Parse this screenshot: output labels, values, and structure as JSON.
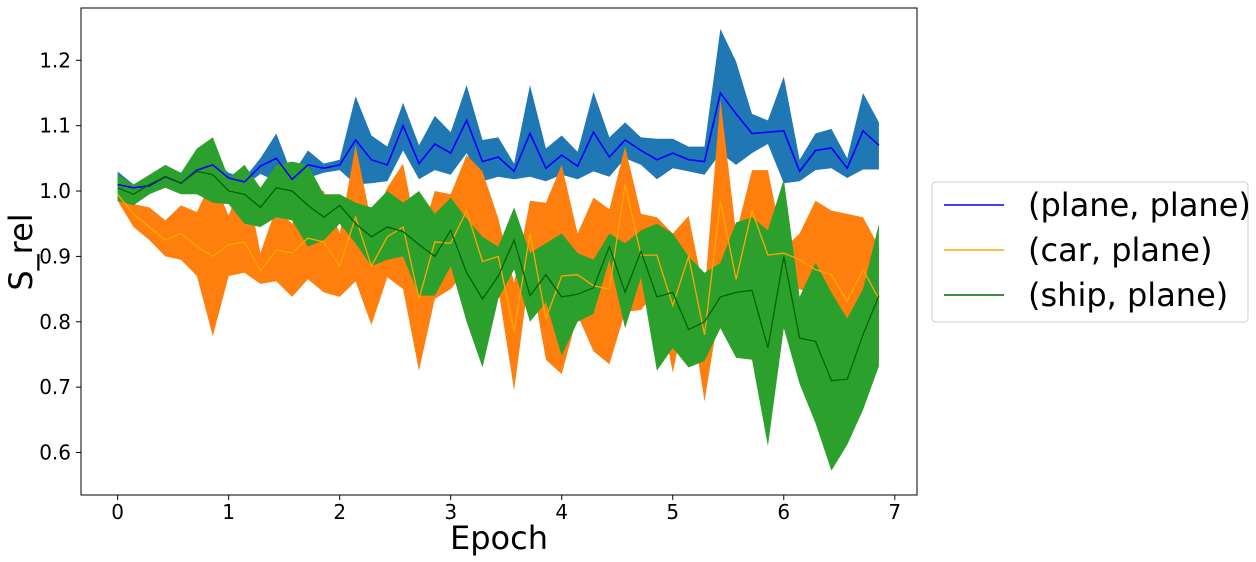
{
  "chart_data": {
    "type": "line",
    "xlabel": "Epoch",
    "ylabel": "S_rel",
    "xlim": [
      -0.33,
      7.2
    ],
    "ylim": [
      0.535,
      1.28
    ],
    "xticks": [
      0,
      1,
      2,
      3,
      4,
      5,
      6,
      7
    ],
    "yticks": [
      0.6,
      0.7,
      0.8,
      0.9,
      1.0,
      1.1,
      1.2
    ],
    "x": [
      0,
      0.143,
      0.286,
      0.429,
      0.571,
      0.714,
      0.857,
      1.0,
      1.143,
      1.286,
      1.429,
      1.571,
      1.714,
      1.857,
      2.0,
      2.143,
      2.286,
      2.429,
      2.571,
      2.714,
      2.857,
      3.0,
      3.143,
      3.286,
      3.429,
      3.571,
      3.714,
      3.857,
      4.0,
      4.143,
      4.286,
      4.429,
      4.571,
      4.714,
      4.857,
      5.0,
      5.143,
      5.286,
      5.429,
      5.571,
      5.714,
      5.857,
      6.0,
      6.143,
      6.286,
      6.429,
      6.571,
      6.714,
      6.857
    ],
    "series": [
      {
        "name": "(plane, plane)",
        "line_color": "#0000ff",
        "fill_color": "#1f77b4",
        "mean": [
          1.01,
          1.005,
          1.008,
          1.022,
          1.012,
          1.032,
          1.04,
          1.02,
          1.014,
          1.038,
          1.05,
          1.018,
          1.04,
          1.035,
          1.04,
          1.078,
          1.048,
          1.04,
          1.1,
          1.042,
          1.072,
          1.058,
          1.108,
          1.045,
          1.052,
          1.03,
          1.088,
          1.035,
          1.055,
          1.038,
          1.09,
          1.052,
          1.078,
          1.062,
          1.048,
          1.058,
          1.048,
          1.045,
          1.15,
          1.118,
          1.088,
          1.09,
          1.092,
          1.03,
          1.062,
          1.066,
          1.035,
          1.092,
          1.07
        ],
        "upper": [
          1.03,
          1.01,
          1.015,
          1.03,
          1.018,
          1.04,
          1.048,
          1.028,
          1.02,
          1.05,
          1.088,
          1.025,
          1.062,
          1.042,
          1.048,
          1.145,
          1.085,
          1.068,
          1.135,
          1.07,
          1.115,
          1.09,
          1.162,
          1.078,
          1.082,
          1.042,
          1.162,
          1.065,
          1.085,
          1.06,
          1.152,
          1.082,
          1.105,
          1.082,
          1.08,
          1.08,
          1.068,
          1.068,
          1.248,
          1.198,
          1.118,
          1.108,
          1.175,
          1.048,
          1.088,
          1.095,
          1.05,
          1.15,
          1.105
        ],
        "lower": [
          1.0,
          1.0,
          1.0,
          1.015,
          1.006,
          1.025,
          1.032,
          1.012,
          1.008,
          1.026,
          1.015,
          1.01,
          1.02,
          1.028,
          1.032,
          1.01,
          1.012,
          1.015,
          1.062,
          1.018,
          1.032,
          1.025,
          1.058,
          1.015,
          1.022,
          1.018,
          1.022,
          1.015,
          1.025,
          1.018,
          1.03,
          1.022,
          1.05,
          1.04,
          1.018,
          1.035,
          1.03,
          1.025,
          1.058,
          1.04,
          1.058,
          1.072,
          1.012,
          1.015,
          1.032,
          1.035,
          1.02,
          1.033,
          1.033
        ]
      },
      {
        "name": "(car, plane)",
        "line_color": "#ffa500",
        "fill_color": "#ff7f0e",
        "mean": [
          0.995,
          0.965,
          0.945,
          0.925,
          0.935,
          0.915,
          0.9,
          0.918,
          0.922,
          0.878,
          0.91,
          0.905,
          0.928,
          0.922,
          0.885,
          0.96,
          0.885,
          0.93,
          0.945,
          0.835,
          0.922,
          0.92,
          0.97,
          0.892,
          0.9,
          0.785,
          0.935,
          0.805,
          0.87,
          0.872,
          0.855,
          0.85,
          1.01,
          0.902,
          0.902,
          0.825,
          0.9,
          0.78,
          0.985,
          0.865,
          0.97,
          0.902,
          0.905,
          0.895,
          0.88,
          0.872,
          0.832,
          0.88,
          0.835
        ],
        "upper": [
          1.0,
          0.98,
          0.975,
          0.955,
          0.978,
          0.968,
          1.02,
          0.962,
          1.032,
          0.905,
          0.975,
          0.95,
          1.0,
          1.0,
          0.935,
          1.07,
          0.952,
          1.005,
          1.042,
          0.92,
          1.0,
          0.995,
          1.055,
          1.03,
          0.958,
          0.86,
          0.985,
          0.982,
          1.04,
          0.935,
          0.99,
          0.972,
          1.068,
          0.965,
          0.96,
          0.935,
          0.962,
          0.842,
          1.14,
          0.935,
          1.032,
          1.032,
          0.912,
          0.935,
          0.985,
          0.97,
          0.965,
          0.96,
          0.915
        ],
        "lower": [
          0.985,
          0.945,
          0.925,
          0.9,
          0.895,
          0.87,
          0.778,
          0.87,
          0.875,
          0.858,
          0.862,
          0.838,
          0.865,
          0.845,
          0.838,
          0.862,
          0.795,
          0.868,
          0.85,
          0.725,
          0.835,
          0.85,
          0.88,
          0.808,
          0.85,
          0.695,
          0.88,
          0.742,
          0.72,
          0.81,
          0.755,
          0.735,
          0.815,
          0.818,
          0.848,
          0.722,
          0.838,
          0.678,
          0.828,
          0.795,
          0.912,
          0.775,
          0.85,
          0.85,
          0.838,
          0.78,
          0.758,
          0.81,
          0.742
        ]
      },
      {
        "name": "(ship, plane)",
        "line_color": "#006400",
        "fill_color": "#2ca02c",
        "mean": [
          1.005,
          0.995,
          1.01,
          1.022,
          1.012,
          1.03,
          1.025,
          1.0,
          0.995,
          0.975,
          1.005,
          1.0,
          0.978,
          0.96,
          0.978,
          0.95,
          0.93,
          0.945,
          0.938,
          0.918,
          0.9,
          0.94,
          0.875,
          0.835,
          0.87,
          0.925,
          0.84,
          0.872,
          0.838,
          0.842,
          0.852,
          0.915,
          0.845,
          0.908,
          0.838,
          0.845,
          0.788,
          0.8,
          0.838,
          0.845,
          0.848,
          0.76,
          0.9,
          0.775,
          0.77,
          0.71,
          0.712,
          0.78,
          0.84
        ],
        "upper": [
          1.025,
          1.01,
          1.025,
          1.04,
          1.028,
          1.065,
          1.082,
          1.02,
          1.04,
          1.005,
          1.04,
          1.045,
          1.04,
          0.995,
          0.995,
          0.982,
          0.975,
          1.0,
          0.982,
          1.0,
          0.965,
          0.99,
          0.958,
          0.93,
          0.915,
          0.975,
          0.905,
          0.92,
          0.935,
          0.905,
          0.895,
          0.935,
          0.92,
          0.94,
          0.95,
          0.935,
          0.9,
          0.875,
          0.89,
          0.952,
          0.96,
          0.94,
          1.018,
          0.838,
          0.89,
          0.845,
          0.805,
          0.85,
          0.95
        ],
        "lower": [
          0.985,
          0.978,
          0.995,
          1.005,
          0.995,
          0.995,
          0.982,
          0.98,
          0.95,
          0.945,
          0.96,
          0.955,
          0.915,
          0.925,
          0.95,
          0.92,
          0.885,
          0.895,
          0.9,
          0.84,
          0.84,
          0.885,
          0.8,
          0.73,
          0.835,
          0.88,
          0.8,
          0.83,
          0.748,
          0.8,
          0.812,
          0.895,
          0.79,
          0.868,
          0.725,
          0.76,
          0.73,
          0.74,
          0.79,
          0.745,
          0.742,
          0.61,
          0.79,
          0.705,
          0.645,
          0.572,
          0.612,
          0.665,
          0.732
        ]
      }
    ],
    "legend_position": "right",
    "grid": false
  }
}
